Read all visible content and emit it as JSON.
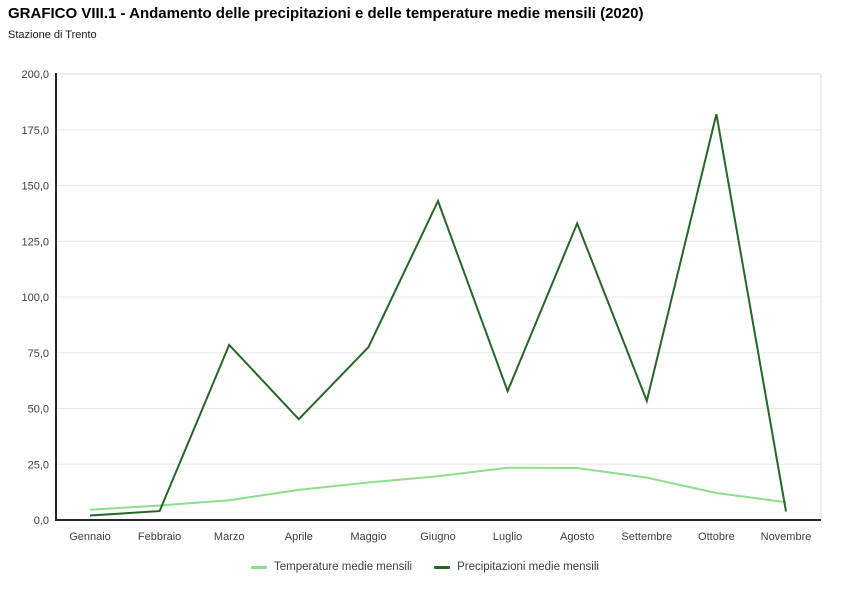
{
  "chart_data": {
    "type": "line",
    "title": "GRAFICO VIII.1 - Andamento delle precipitazioni e delle temperature medie mensili (2020)",
    "subtitle": "Stazione di Trento",
    "categories": [
      "Gennaio",
      "Febbraio",
      "Marzo",
      "Aprile",
      "Maggio",
      "Giugno",
      "Luglio",
      "Agosto",
      "Settembre",
      "Ottobre",
      "Novembre"
    ],
    "series": [
      {
        "name": "Temperature medie mensili",
        "color": "#8cdf8c",
        "values": [
          4.6,
          6.5,
          8.9,
          13.5,
          16.8,
          19.6,
          23.4,
          23.3,
          19.0,
          12.1,
          8.0
        ]
      },
      {
        "name": "Precipitazioni medie mensili",
        "color": "#266728",
        "values": [
          2.0,
          4.0,
          78.5,
          45.2,
          77.5,
          143.0,
          57.8,
          133.0,
          53.4,
          182.0,
          3.8
        ]
      }
    ],
    "ylim": [
      0,
      200
    ],
    "ytick_step": 25,
    "ytick_labels": [
      "0,0",
      "25,0",
      "50,0",
      "75,0",
      "100,0",
      "125,0",
      "150,0",
      "175,0",
      "200,0"
    ],
    "grid": "horizontal",
    "legend_position": "bottom",
    "colors": {
      "axis_line": "#262626",
      "gridline": "#e8e8e8",
      "plot_border": "#dcdcdc",
      "tick_label": "#3f3f3f"
    }
  }
}
